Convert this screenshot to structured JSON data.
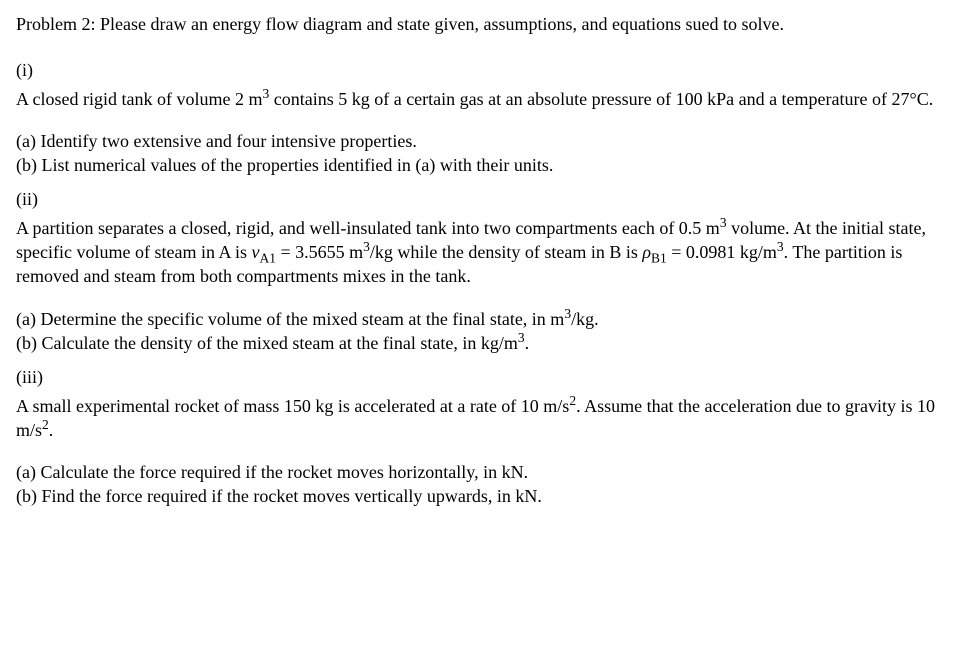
{
  "intro": "Problem 2:  Please draw an energy flow diagram and state given, assumptions, and equations sued to solve.",
  "part_i": {
    "marker": "(i)",
    "desc_pre": "A closed rigid tank of volume 2 m",
    "desc_sup1": "3",
    "desc_post": " contains 5 kg of a certain gas at an absolute pressure of 100 kPa and a temperature of 27°C.",
    "a": "(a) Identify two extensive and four intensive properties.",
    "b": "(b) List numerical values of the properties identified in (a) with their units."
  },
  "part_ii": {
    "marker": "(ii)",
    "desc_l1_a": "A partition separates a closed, rigid, and well-insulated tank into two compartments each of 0.5 m",
    "desc_l1_sup": "3",
    "desc_l1_b": " volume. At the initial state, specific volume of steam in A is ",
    "vA1_sym": "v",
    "vA1_sub": "A1",
    "vA1_eq": " = 3.5655 m",
    "vA1_sup": "3",
    "vA1_post": "/kg while the density of steam in B is ",
    "rhoB1_sym": "ρ",
    "rhoB1_sub": "B1",
    "rhoB1_eq": " = 0.0981 kg/m",
    "rhoB1_sup": "3",
    "rhoB1_post": ".  The partition is removed and steam from both compartments mixes in the tank.",
    "a_pre": "(a) Determine the specific volume of the mixed steam at the final state, in m",
    "a_sup": "3",
    "a_post": "/kg.",
    "b_pre": "(b) Calculate the density of the mixed steam at the final state, in kg/m",
    "b_sup": "3",
    "b_post": "."
  },
  "part_iii": {
    "marker": "(iii)",
    "desc_a": "A small experimental rocket of mass 150 kg is accelerated at a rate of 10 m/s",
    "desc_sup1": "2",
    "desc_b": ".  Assume that the acceleration due to gravity is 10 m/s",
    "desc_sup2": "2",
    "desc_c": ".",
    "a": "(a) Calculate the force required if the rocket moves horizontally, in kN.",
    "b": "(b) Find the force required if the rocket moves vertically upwards, in kN."
  }
}
